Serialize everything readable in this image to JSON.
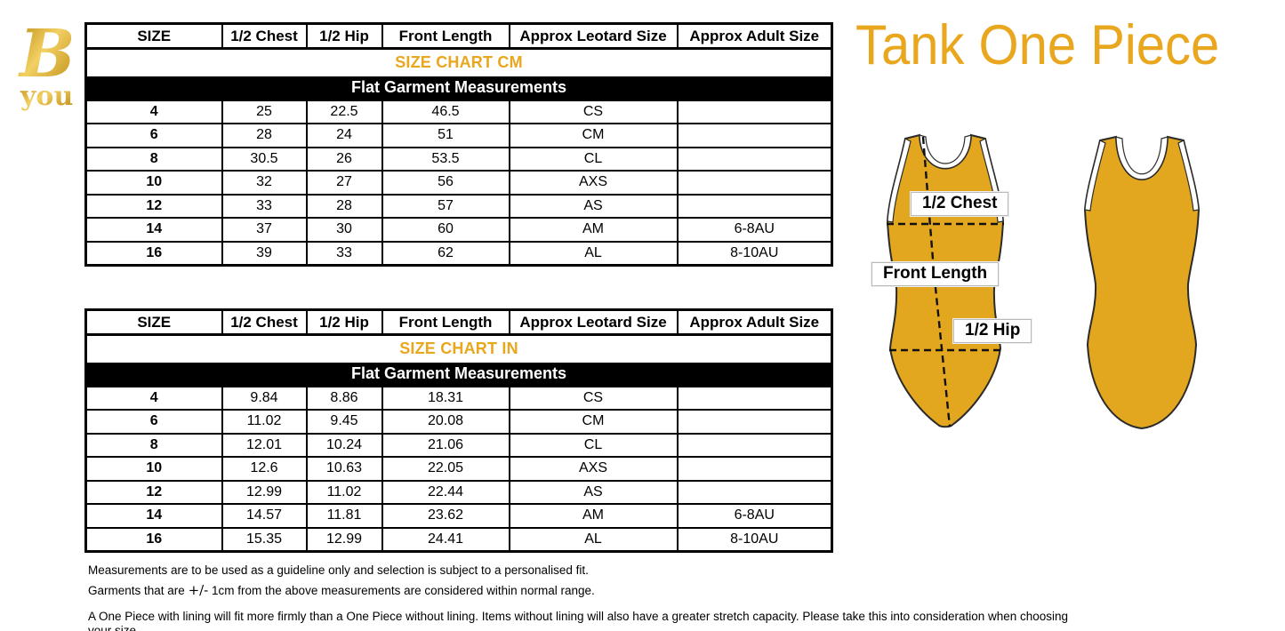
{
  "logo": {
    "b": "B",
    "you": "you"
  },
  "product_title": "Tank One Piece",
  "colors": {
    "gold_text": "#e9a71d",
    "leotard_fill": "#e2a71e",
    "leotard_outline": "#2b2b2b",
    "table_border": "#000000",
    "subtitle_bg": "#000000",
    "subtitle_text": "#ffffff"
  },
  "tables": [
    {
      "title": "SIZE CHART CM",
      "subtitle": "Flat Garment Measurements",
      "columns": [
        "SIZE",
        "1/2 Chest",
        "1/2 Hip",
        "Front Length",
        "Approx Leotard Size",
        "Approx Adult Size"
      ],
      "rows": [
        [
          "4",
          "25",
          "22.5",
          "46.5",
          "CS",
          ""
        ],
        [
          "6",
          "28",
          "24",
          "51",
          "CM",
          ""
        ],
        [
          "8",
          "30.5",
          "26",
          "53.5",
          "CL",
          ""
        ],
        [
          "10",
          "32",
          "27",
          "56",
          "AXS",
          ""
        ],
        [
          "12",
          "33",
          "28",
          "57",
          "AS",
          ""
        ],
        [
          "14",
          "37",
          "30",
          "60",
          "AM",
          "6-8AU"
        ],
        [
          "16",
          "39",
          "33",
          "62",
          "AL",
          "8-10AU"
        ]
      ]
    },
    {
      "title": "SIZE CHART IN",
      "subtitle": "Flat Garment Measurements",
      "columns": [
        "SIZE",
        "1/2 Chest",
        "1/2 Hip",
        "Front Length",
        "Approx Leotard Size",
        "Approx Adult Size"
      ],
      "rows": [
        [
          "4",
          "9.84",
          "8.86",
          "18.31",
          "CS",
          ""
        ],
        [
          "6",
          "11.02",
          "9.45",
          "20.08",
          "CM",
          ""
        ],
        [
          "8",
          "12.01",
          "10.24",
          "21.06",
          "CL",
          ""
        ],
        [
          "10",
          "12.6",
          "10.63",
          "22.05",
          "AXS",
          ""
        ],
        [
          "12",
          "12.99",
          "11.02",
          "22.44",
          "AS",
          ""
        ],
        [
          "14",
          "14.57",
          "11.81",
          "23.62",
          "AM",
          "6-8AU"
        ],
        [
          "16",
          "15.35",
          "12.99",
          "24.41",
          "AL",
          "8-10AU"
        ]
      ]
    }
  ],
  "diagram_labels": {
    "chest": "1/2 Chest",
    "front_length": "Front Length",
    "hip": "1/2 Hip"
  },
  "footnotes": {
    "line1": "Measurements are to be used as a guideline only and selection is subject to a personalised fit.",
    "line2_pre": "Garments that are ",
    "line2_symbol": "+/-",
    "line2_post": " 1cm from the above measurements are considered within normal range.",
    "line3": "A One Piece with lining will fit more firmly than a One Piece without lining.  Items without lining will also have a greater stretch capacity. Please take this into consideration when choosing your size"
  }
}
